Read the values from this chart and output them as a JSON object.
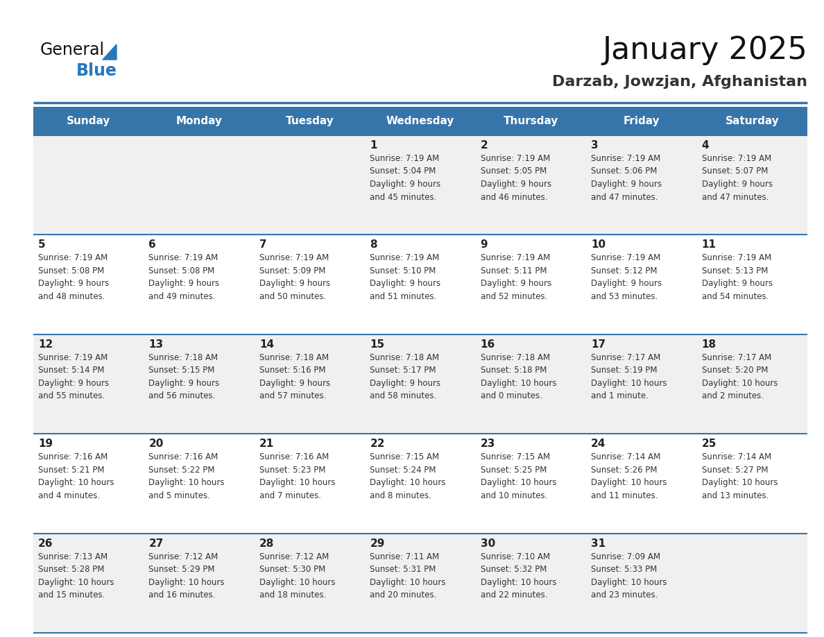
{
  "title": "January 2025",
  "subtitle": "Darzab, Jowzjan, Afghanistan",
  "days_of_week": [
    "Sunday",
    "Monday",
    "Tuesday",
    "Wednesday",
    "Thursday",
    "Friday",
    "Saturday"
  ],
  "header_bg": "#3675a9",
  "header_text": "#ffffff",
  "cell_bg_odd": "#f0f0f0",
  "cell_bg_even": "#ffffff",
  "line_color": "#3675a9",
  "day_num_color": "#222222",
  "cell_text_color": "#333333",
  "title_color": "#111111",
  "subtitle_color": "#333333",
  "logo_color_general": "#111111",
  "logo_color_blue": "#2878be",
  "logo_triangle_color": "#2878be",
  "calendar": [
    [
      {
        "day": "",
        "info": ""
      },
      {
        "day": "",
        "info": ""
      },
      {
        "day": "",
        "info": ""
      },
      {
        "day": "1",
        "info": "Sunrise: 7:19 AM\nSunset: 5:04 PM\nDaylight: 9 hours\nand 45 minutes."
      },
      {
        "day": "2",
        "info": "Sunrise: 7:19 AM\nSunset: 5:05 PM\nDaylight: 9 hours\nand 46 minutes."
      },
      {
        "day": "3",
        "info": "Sunrise: 7:19 AM\nSunset: 5:06 PM\nDaylight: 9 hours\nand 47 minutes."
      },
      {
        "day": "4",
        "info": "Sunrise: 7:19 AM\nSunset: 5:07 PM\nDaylight: 9 hours\nand 47 minutes."
      }
    ],
    [
      {
        "day": "5",
        "info": "Sunrise: 7:19 AM\nSunset: 5:08 PM\nDaylight: 9 hours\nand 48 minutes."
      },
      {
        "day": "6",
        "info": "Sunrise: 7:19 AM\nSunset: 5:08 PM\nDaylight: 9 hours\nand 49 minutes."
      },
      {
        "day": "7",
        "info": "Sunrise: 7:19 AM\nSunset: 5:09 PM\nDaylight: 9 hours\nand 50 minutes."
      },
      {
        "day": "8",
        "info": "Sunrise: 7:19 AM\nSunset: 5:10 PM\nDaylight: 9 hours\nand 51 minutes."
      },
      {
        "day": "9",
        "info": "Sunrise: 7:19 AM\nSunset: 5:11 PM\nDaylight: 9 hours\nand 52 minutes."
      },
      {
        "day": "10",
        "info": "Sunrise: 7:19 AM\nSunset: 5:12 PM\nDaylight: 9 hours\nand 53 minutes."
      },
      {
        "day": "11",
        "info": "Sunrise: 7:19 AM\nSunset: 5:13 PM\nDaylight: 9 hours\nand 54 minutes."
      }
    ],
    [
      {
        "day": "12",
        "info": "Sunrise: 7:19 AM\nSunset: 5:14 PM\nDaylight: 9 hours\nand 55 minutes."
      },
      {
        "day": "13",
        "info": "Sunrise: 7:18 AM\nSunset: 5:15 PM\nDaylight: 9 hours\nand 56 minutes."
      },
      {
        "day": "14",
        "info": "Sunrise: 7:18 AM\nSunset: 5:16 PM\nDaylight: 9 hours\nand 57 minutes."
      },
      {
        "day": "15",
        "info": "Sunrise: 7:18 AM\nSunset: 5:17 PM\nDaylight: 9 hours\nand 58 minutes."
      },
      {
        "day": "16",
        "info": "Sunrise: 7:18 AM\nSunset: 5:18 PM\nDaylight: 10 hours\nand 0 minutes."
      },
      {
        "day": "17",
        "info": "Sunrise: 7:17 AM\nSunset: 5:19 PM\nDaylight: 10 hours\nand 1 minute."
      },
      {
        "day": "18",
        "info": "Sunrise: 7:17 AM\nSunset: 5:20 PM\nDaylight: 10 hours\nand 2 minutes."
      }
    ],
    [
      {
        "day": "19",
        "info": "Sunrise: 7:16 AM\nSunset: 5:21 PM\nDaylight: 10 hours\nand 4 minutes."
      },
      {
        "day": "20",
        "info": "Sunrise: 7:16 AM\nSunset: 5:22 PM\nDaylight: 10 hours\nand 5 minutes."
      },
      {
        "day": "21",
        "info": "Sunrise: 7:16 AM\nSunset: 5:23 PM\nDaylight: 10 hours\nand 7 minutes."
      },
      {
        "day": "22",
        "info": "Sunrise: 7:15 AM\nSunset: 5:24 PM\nDaylight: 10 hours\nand 8 minutes."
      },
      {
        "day": "23",
        "info": "Sunrise: 7:15 AM\nSunset: 5:25 PM\nDaylight: 10 hours\nand 10 minutes."
      },
      {
        "day": "24",
        "info": "Sunrise: 7:14 AM\nSunset: 5:26 PM\nDaylight: 10 hours\nand 11 minutes."
      },
      {
        "day": "25",
        "info": "Sunrise: 7:14 AM\nSunset: 5:27 PM\nDaylight: 10 hours\nand 13 minutes."
      }
    ],
    [
      {
        "day": "26",
        "info": "Sunrise: 7:13 AM\nSunset: 5:28 PM\nDaylight: 10 hours\nand 15 minutes."
      },
      {
        "day": "27",
        "info": "Sunrise: 7:12 AM\nSunset: 5:29 PM\nDaylight: 10 hours\nand 16 minutes."
      },
      {
        "day": "28",
        "info": "Sunrise: 7:12 AM\nSunset: 5:30 PM\nDaylight: 10 hours\nand 18 minutes."
      },
      {
        "day": "29",
        "info": "Sunrise: 7:11 AM\nSunset: 5:31 PM\nDaylight: 10 hours\nand 20 minutes."
      },
      {
        "day": "30",
        "info": "Sunrise: 7:10 AM\nSunset: 5:32 PM\nDaylight: 10 hours\nand 22 minutes."
      },
      {
        "day": "31",
        "info": "Sunrise: 7:09 AM\nSunset: 5:33 PM\nDaylight: 10 hours\nand 23 minutes."
      },
      {
        "day": "",
        "info": ""
      }
    ]
  ]
}
